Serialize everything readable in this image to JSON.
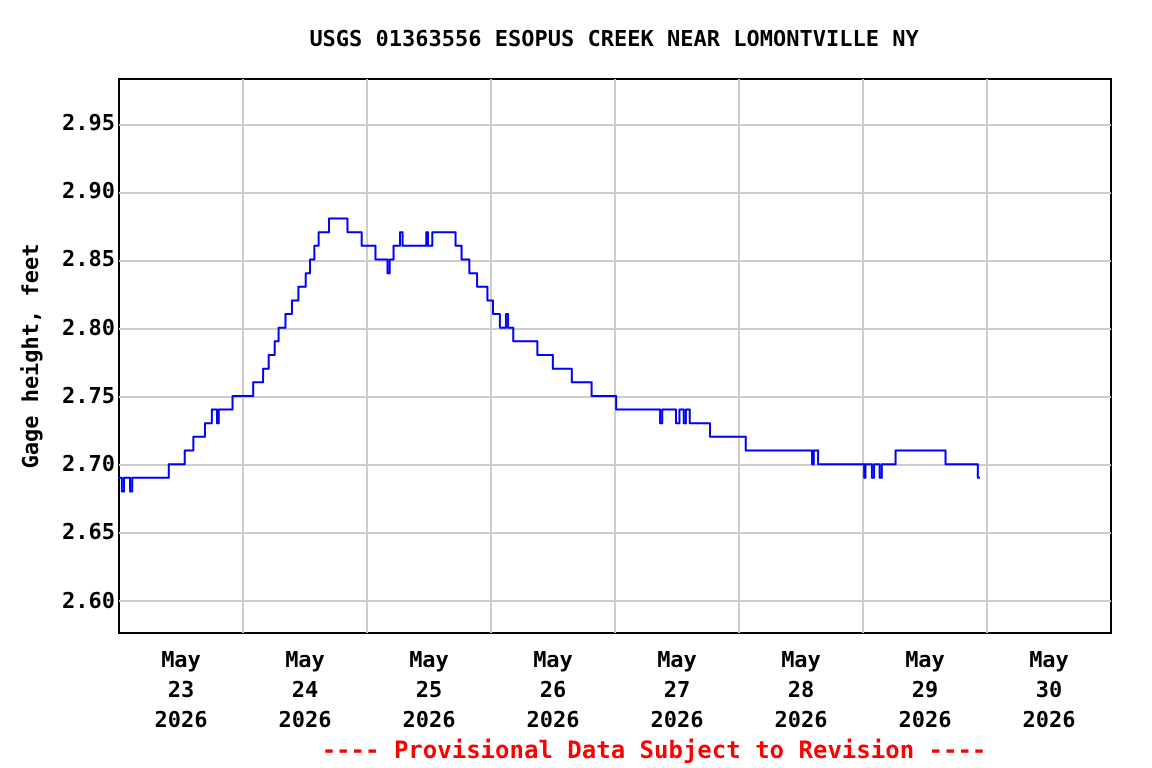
{
  "chart_data": {
    "type": "step",
    "title": "USGS 01363556 ESOPUS CREEK NEAR LOMONTVILLE NY",
    "ylabel": "Gage height, feet",
    "grid": true,
    "line_style": "solid",
    "annotations": [
      "---- Provisional Data Subject to Revision ----"
    ],
    "xlim": [
      "2026-05-23T00:00",
      "2026-05-31T00:00"
    ],
    "xticks": [
      {
        "value": "2026-05-23T12:00",
        "label": "May\n23\n2026"
      },
      {
        "value": "2026-05-24T00:00",
        "label": null
      },
      {
        "value": "2026-05-24T12:00",
        "label": "May\n24\n2026"
      },
      {
        "value": "2026-05-25T00:00",
        "label": null
      },
      {
        "value": "2026-05-25T12:00",
        "label": "May\n25\n2026"
      },
      {
        "value": "2026-05-26T00:00",
        "label": null
      },
      {
        "value": "2026-05-26T12:00",
        "label": "May\n26\n2026"
      },
      {
        "value": "2026-05-27T00:00",
        "label": null
      },
      {
        "value": "2026-05-27T12:00",
        "label": "May\n27\n2026"
      },
      {
        "value": "2026-05-28T00:00",
        "label": null
      },
      {
        "value": "2026-05-28T12:00",
        "label": "May\n28\n2026"
      },
      {
        "value": "2026-05-29T00:00",
        "label": null
      },
      {
        "value": "2026-05-29T12:00",
        "label": "May\n29\n2026"
      },
      {
        "value": "2026-05-30T00:00",
        "label": null
      },
      {
        "value": "2026-05-30T12:00",
        "label": "May\n30\n2026"
      }
    ],
    "ylim": [
      2.577,
      2.983
    ],
    "yticks": [
      {
        "value": 2.6,
        "label": "2.60"
      },
      {
        "value": 2.65,
        "label": "2.65"
      },
      {
        "value": 2.7,
        "label": "2.70"
      },
      {
        "value": 2.75,
        "label": "2.75"
      },
      {
        "value": 2.8,
        "label": "2.80"
      },
      {
        "value": 2.85,
        "label": "2.85"
      },
      {
        "value": 2.9,
        "label": "2.90"
      },
      {
        "value": 2.95,
        "label": "2.95"
      }
    ],
    "series": [
      {
        "color": "#0000ff",
        "x": [
          "2026-05-23T00:00",
          "2026-05-23T00:45",
          "2026-05-23T01:10",
          "2026-05-23T02:20",
          "2026-05-23T02:45",
          "2026-05-23T09:50",
          "2026-05-23T12:55",
          "2026-05-23T14:35",
          "2026-05-23T16:50",
          "2026-05-23T18:10",
          "2026-05-23T19:10",
          "2026-05-23T19:30",
          "2026-05-23T22:10",
          "2026-05-24T02:10",
          "2026-05-24T04:05",
          "2026-05-24T05:10",
          "2026-05-24T06:20",
          "2026-05-24T07:05",
          "2026-05-24T08:25",
          "2026-05-24T09:40",
          "2026-05-24T10:55",
          "2026-05-24T12:20",
          "2026-05-24T13:10",
          "2026-05-24T14:00",
          "2026-05-24T14:50",
          "2026-05-24T16:50",
          "2026-05-24T20:25",
          "2026-05-24T23:10",
          "2026-05-25T01:50",
          "2026-05-25T04:10",
          "2026-05-25T04:35",
          "2026-05-25T05:20",
          "2026-05-25T06:35",
          "2026-05-25T07:05",
          "2026-05-25T11:40",
          "2026-05-25T12:00",
          "2026-05-25T12:50",
          "2026-05-25T17:20",
          "2026-05-25T18:30",
          "2026-05-25T20:00",
          "2026-05-25T21:30",
          "2026-05-25T23:30",
          "2026-05-26T00:35",
          "2026-05-26T01:55",
          "2026-05-26T03:05",
          "2026-05-26T03:30",
          "2026-05-26T04:30",
          "2026-05-26T09:10",
          "2026-05-26T12:10",
          "2026-05-26T15:50",
          "2026-05-26T19:40",
          "2026-05-27T00:25",
          "2026-05-27T08:55",
          "2026-05-27T09:20",
          "2026-05-27T12:00",
          "2026-05-27T12:40",
          "2026-05-27T13:30",
          "2026-05-27T13:55",
          "2026-05-27T14:40",
          "2026-05-27T18:35",
          "2026-05-28T01:30",
          "2026-05-28T14:20",
          "2026-05-28T14:40",
          "2026-05-28T15:30",
          "2026-05-29T00:25",
          "2026-05-29T00:40",
          "2026-05-29T01:55",
          "2026-05-29T02:20",
          "2026-05-29T03:25",
          "2026-05-29T03:50",
          "2026-05-29T06:30",
          "2026-05-29T16:10",
          "2026-05-29T22:25",
          "2026-05-29T22:50"
        ],
        "values": [
          2.69,
          2.68,
          2.69,
          2.68,
          2.69,
          2.7,
          2.71,
          2.72,
          2.73,
          2.74,
          2.73,
          2.74,
          2.75,
          2.76,
          2.77,
          2.78,
          2.79,
          2.8,
          2.81,
          2.82,
          2.83,
          2.84,
          2.85,
          2.86,
          2.87,
          2.88,
          2.87,
          2.86,
          2.85,
          2.84,
          2.85,
          2.86,
          2.87,
          2.86,
          2.87,
          2.86,
          2.87,
          2.86,
          2.85,
          2.84,
          2.83,
          2.82,
          2.81,
          2.8,
          2.81,
          2.8,
          2.79,
          2.78,
          2.77,
          2.76,
          2.75,
          2.74,
          2.73,
          2.74,
          2.73,
          2.74,
          2.73,
          2.74,
          2.73,
          2.72,
          2.71,
          2.7,
          2.71,
          2.7,
          2.69,
          2.7,
          2.69,
          2.7,
          2.69,
          2.7,
          2.71,
          2.7,
          2.69,
          2.69
        ]
      }
    ]
  }
}
